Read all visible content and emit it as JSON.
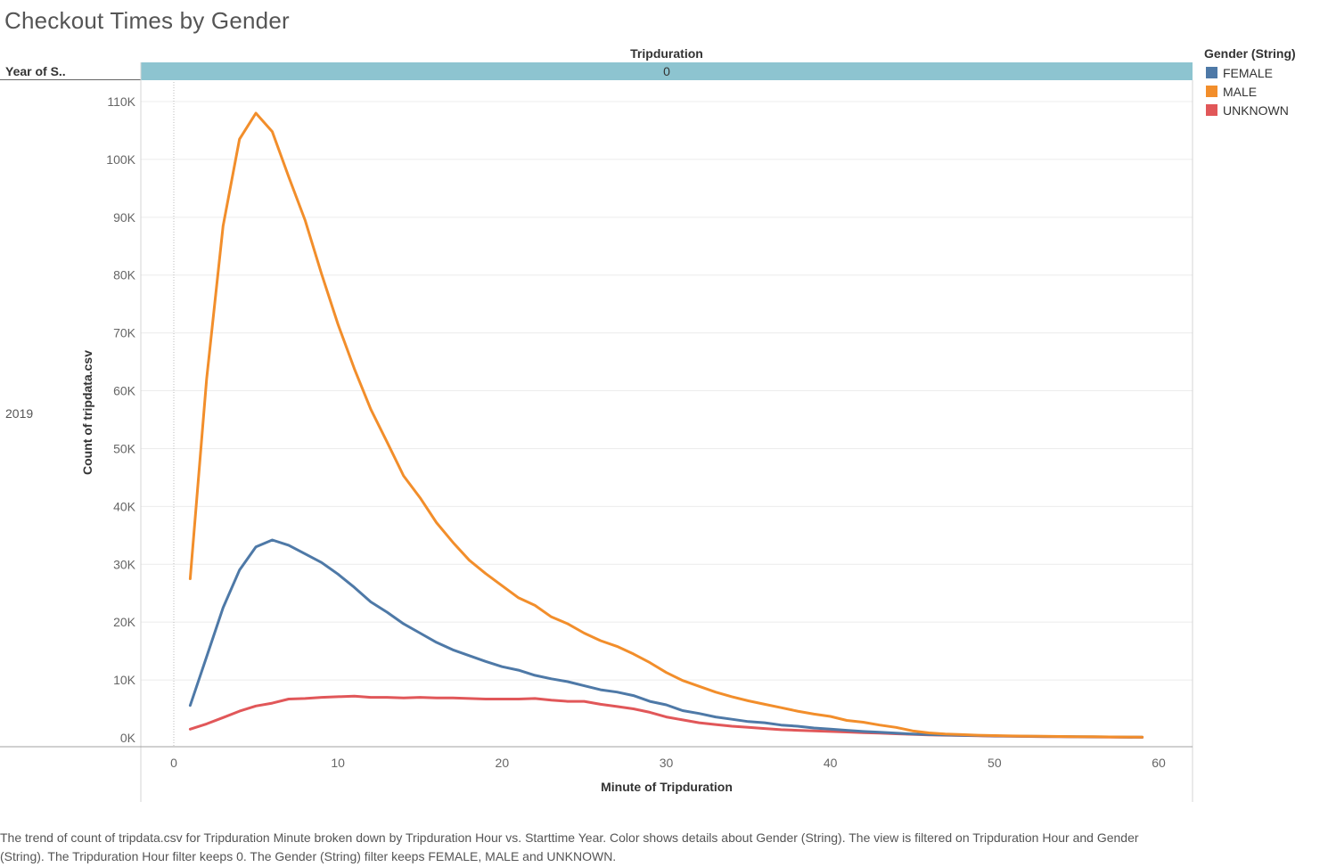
{
  "chart_data": {
    "type": "line",
    "title": "Checkout Times by Gender",
    "xlabel": "Minute of Tripduration",
    "ylabel": "Count of tripdata.csv",
    "column_header": "Tripduration",
    "column_value": "0",
    "row_header": "Year of S..",
    "row_value": "2019",
    "xlim": [
      -2,
      62
    ],
    "ylim": [
      0,
      112000
    ],
    "x_ticks": [
      0,
      10,
      20,
      30,
      40,
      50,
      60
    ],
    "x_tick_labels": [
      "0",
      "10",
      "20",
      "30",
      "40",
      "50",
      "60"
    ],
    "y_ticks": [
      0,
      10000,
      20000,
      30000,
      40000,
      50000,
      60000,
      70000,
      80000,
      90000,
      100000,
      110000
    ],
    "y_tick_labels": [
      "0K",
      "10K",
      "20K",
      "30K",
      "40K",
      "50K",
      "60K",
      "70K",
      "80K",
      "90K",
      "100K",
      "110K"
    ],
    "grid": true,
    "legend_title": "Gender (String)",
    "legend_position": "top-right",
    "x": [
      1,
      2,
      3,
      4,
      5,
      6,
      7,
      8,
      9,
      10,
      11,
      12,
      13,
      14,
      15,
      16,
      17,
      18,
      19,
      20,
      21,
      22,
      23,
      24,
      25,
      26,
      27,
      28,
      29,
      30,
      31,
      32,
      33,
      34,
      35,
      36,
      37,
      38,
      39,
      40,
      41,
      42,
      43,
      44,
      45,
      46,
      47,
      48,
      49,
      50,
      51,
      52,
      53,
      54,
      55,
      56,
      57,
      58,
      59
    ],
    "series": [
      {
        "name": "FEMALE",
        "color": "#4e79a7",
        "values": [
          5600,
          14000,
          22500,
          29000,
          33000,
          34200,
          33300,
          31800,
          30300,
          28300,
          26000,
          23500,
          21700,
          19700,
          18100,
          16500,
          15200,
          14200,
          13200,
          12300,
          11700,
          10800,
          10200,
          9700,
          9000,
          8300,
          7900,
          7300,
          6300,
          5700,
          4700,
          4200,
          3600,
          3200,
          2800,
          2600,
          2200,
          2000,
          1700,
          1500,
          1300,
          1100,
          950,
          800,
          650,
          550,
          480,
          420,
          380,
          330,
          290,
          260,
          230,
          210,
          190,
          170,
          150,
          130,
          110
        ]
      },
      {
        "name": "MALE",
        "color": "#f28e2b",
        "values": [
          27500,
          62000,
          88500,
          103500,
          108000,
          104800,
          97000,
          89500,
          80200,
          71500,
          63800,
          56800,
          51100,
          45300,
          41500,
          37200,
          33800,
          30700,
          28400,
          26300,
          24200,
          22900,
          20900,
          19700,
          18100,
          16800,
          15800,
          14500,
          13000,
          11300,
          9900,
          8900,
          7900,
          7100,
          6400,
          5800,
          5200,
          4600,
          4100,
          3700,
          3000,
          2700,
          2200,
          1800,
          1200,
          850,
          650,
          550,
          450,
          380,
          330,
          290,
          260,
          230,
          200,
          180,
          160,
          140,
          120
        ]
      },
      {
        "name": "UNKNOWN",
        "color": "#e15759",
        "values": [
          1500,
          2400,
          3500,
          4600,
          5500,
          6000,
          6700,
          6800,
          7000,
          7100,
          7200,
          7000,
          7000,
          6900,
          7000,
          6900,
          6900,
          6800,
          6700,
          6700,
          6700,
          6800,
          6500,
          6300,
          6300,
          5800,
          5400,
          5000,
          4400,
          3600,
          3100,
          2600,
          2300,
          2000,
          1800,
          1600,
          1400,
          1300,
          1200,
          1100,
          1000,
          900,
          800,
          700,
          600,
          500,
          450,
          400,
          350,
          300,
          260,
          230,
          200,
          180,
          160,
          140,
          120,
          100,
          80
        ]
      }
    ]
  },
  "caption": "The trend of count of tripdata.csv for Tripduration Minute broken down by Tripduration Hour vs. Starttime Year.  Color shows details about Gender (String). The view is filtered on Tripduration Hour and Gender (String). The Tripduration Hour filter keeps 0. The Gender (String) filter keeps FEMALE, MALE and UNKNOWN."
}
